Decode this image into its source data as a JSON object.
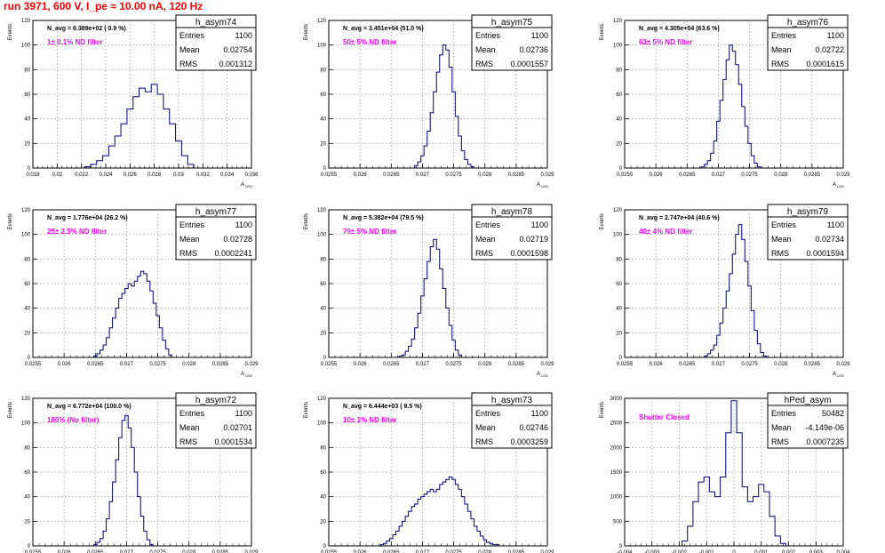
{
  "page_title": "run 3971,   600 V, I_pe ≈ 10.00 nA, 120 Hz",
  "colors": {
    "title": "#ff0000",
    "histogram": "#000080",
    "annotation": "#ff00ff",
    "grid": "#b4b4b4"
  },
  "chart_data": [
    {
      "type": "histogram",
      "name": "h_asym74",
      "ylabel": "Events",
      "xlabel": "A_LED",
      "stats": {
        "entries": "1100",
        "mean": "0.02754",
        "rms": "0.001312"
      },
      "navg_label": "N_avg = 6.389e+02 ( 0.9 %)",
      "filter_label": "1± 0.1% ND filter",
      "xlim": [
        0.018,
        0.036
      ],
      "ylim": [
        0,
        120
      ],
      "grid": true,
      "x_ticks": [
        "0.018",
        "0.02",
        "0.022",
        "0.024",
        "0.026",
        "0.028",
        "0.03",
        "0.032",
        "0.034",
        "0.036"
      ],
      "y_ticks": [
        "0",
        "20",
        "40",
        "60",
        "80",
        "100",
        "120"
      ],
      "x": [
        0.0225,
        0.023,
        0.0235,
        0.024,
        0.0245,
        0.025,
        0.0255,
        0.026,
        0.0265,
        0.027,
        0.0275,
        0.028,
        0.0285,
        0.029,
        0.0295,
        0.03,
        0.0305,
        0.031
      ],
      "values": [
        1,
        3,
        6,
        10,
        18,
        26,
        36,
        48,
        58,
        65,
        62,
        68,
        60,
        48,
        36,
        22,
        10,
        3
      ]
    },
    {
      "type": "histogram",
      "name": "h_asym75",
      "ylabel": "Events",
      "xlabel": "A_LED",
      "stats": {
        "entries": "1100",
        "mean": "0.02736",
        "rms": "0.0001557"
      },
      "navg_label": "N_avg = 3.451e+04 (51.0 %)",
      "filter_label": "50± 5% ND filter",
      "xlim": [
        0.0255,
        0.029
      ],
      "ylim": [
        0,
        120
      ],
      "grid": true,
      "x_ticks": [
        "0.0255",
        "0.026",
        "0.0265",
        "0.027",
        "0.0275",
        "0.028",
        "0.0285",
        "0.029"
      ],
      "y_ticks": [
        "0",
        "20",
        "40",
        "60",
        "80",
        "100",
        "120"
      ],
      "x": [
        0.0269,
        0.02695,
        0.027,
        0.02705,
        0.0271,
        0.02715,
        0.0272,
        0.02725,
        0.0273,
        0.02735,
        0.0274,
        0.02745,
        0.0275,
        0.02755,
        0.0276,
        0.02765,
        0.0277,
        0.02775,
        0.0278
      ],
      "values": [
        2,
        5,
        10,
        18,
        30,
        45,
        62,
        78,
        92,
        100,
        96,
        82,
        62,
        42,
        26,
        14,
        7,
        3,
        1
      ]
    },
    {
      "type": "histogram",
      "name": "h_asym76",
      "ylabel": "Events",
      "xlabel": "A_LED",
      "stats": {
        "entries": "1100",
        "mean": "0.02722",
        "rms": "0.0001615"
      },
      "navg_label": "N_avg = 4.305e+04 (63.6 %)",
      "filter_label": "63± 5% ND filter",
      "xlim": [
        0.0255,
        0.029
      ],
      "ylim": [
        0,
        120
      ],
      "grid": true,
      "x_ticks": [
        "0.0255",
        "0.026",
        "0.0265",
        "0.027",
        "0.0275",
        "0.028",
        "0.0285",
        "0.029"
      ],
      "y_ticks": [
        "0",
        "20",
        "40",
        "60",
        "80",
        "100",
        "120"
      ],
      "x": [
        0.02675,
        0.0268,
        0.02685,
        0.0269,
        0.02695,
        0.027,
        0.02705,
        0.0271,
        0.02715,
        0.0272,
        0.02725,
        0.0273,
        0.02735,
        0.0274,
        0.02745,
        0.0275,
        0.02755,
        0.0276,
        0.02765
      ],
      "values": [
        1,
        3,
        6,
        12,
        22,
        38,
        55,
        72,
        88,
        100,
        95,
        84,
        68,
        50,
        34,
        20,
        10,
        4,
        1
      ]
    },
    {
      "type": "histogram",
      "name": "h_asym77",
      "ylabel": "Events",
      "xlabel": "A_LED",
      "stats": {
        "entries": "1100",
        "mean": "0.02728",
        "rms": "0.0002241"
      },
      "navg_label": "N_avg = 1.776e+04 (26.2 %)",
      "filter_label": "25± 2.5% ND filter",
      "xlim": [
        0.0255,
        0.029
      ],
      "ylim": [
        0,
        120
      ],
      "grid": true,
      "x_ticks": [
        "0.0255",
        "0.026",
        "0.0265",
        "0.027",
        "0.0275",
        "0.028",
        "0.0285",
        "0.029"
      ],
      "y_ticks": [
        "0",
        "20",
        "40",
        "60",
        "80",
        "100",
        "120"
      ],
      "x": [
        0.0265,
        0.02655,
        0.0266,
        0.02665,
        0.0267,
        0.02675,
        0.0268,
        0.02685,
        0.0269,
        0.02695,
        0.027,
        0.02705,
        0.0271,
        0.02715,
        0.0272,
        0.02725,
        0.0273,
        0.02735,
        0.0274,
        0.02745,
        0.0275,
        0.02755,
        0.0276,
        0.02765,
        0.0277
      ],
      "values": [
        1,
        3,
        6,
        10,
        16,
        24,
        32,
        40,
        48,
        52,
        56,
        60,
        58,
        62,
        66,
        70,
        68,
        62,
        54,
        44,
        34,
        24,
        14,
        7,
        2
      ]
    },
    {
      "type": "histogram",
      "name": "h_asym78",
      "ylabel": "Events",
      "xlabel": "A_LED",
      "stats": {
        "entries": "1100",
        "mean": "0.02719",
        "rms": "0.0001598"
      },
      "navg_label": "N_avg = 5.382e+04 (79.5 %)",
      "filter_label": "79± 5% ND filter",
      "xlim": [
        0.0255,
        0.029
      ],
      "ylim": [
        0,
        120
      ],
      "grid": true,
      "x_ticks": [
        "0.0255",
        "0.026",
        "0.0265",
        "0.027",
        "0.0275",
        "0.028",
        "0.0285",
        "0.029"
      ],
      "y_ticks": [
        "0",
        "20",
        "40",
        "60",
        "80",
        "100",
        "120"
      ],
      "x": [
        0.02665,
        0.0267,
        0.02675,
        0.0268,
        0.02685,
        0.0269,
        0.02695,
        0.027,
        0.02705,
        0.0271,
        0.02715,
        0.0272,
        0.02725,
        0.0273,
        0.02735,
        0.0274,
        0.02745,
        0.0275,
        0.02755,
        0.0276
      ],
      "values": [
        1,
        2,
        5,
        9,
        15,
        24,
        36,
        50,
        64,
        78,
        90,
        96,
        88,
        72,
        56,
        40,
        26,
        14,
        6,
        2
      ]
    },
    {
      "type": "histogram",
      "name": "h_asym79",
      "ylabel": "Events",
      "xlabel": "A_LED",
      "stats": {
        "entries": "1100",
        "mean": "0.02734",
        "rms": "0.0001594"
      },
      "navg_label": "N_avg = 2.747e+04 (40.6 %)",
      "filter_label": "40± 4% ND filter",
      "xlim": [
        0.0255,
        0.029
      ],
      "ylim": [
        0,
        120
      ],
      "grid": true,
      "x_ticks": [
        "0.0255",
        "0.026",
        "0.0265",
        "0.027",
        "0.0275",
        "0.028",
        "0.0285",
        "0.029"
      ],
      "y_ticks": [
        "0",
        "20",
        "40",
        "60",
        "80",
        "100",
        "120"
      ],
      "x": [
        0.0268,
        0.02685,
        0.0269,
        0.02695,
        0.027,
        0.02705,
        0.0271,
        0.02715,
        0.0272,
        0.02725,
        0.0273,
        0.02735,
        0.0274,
        0.02745,
        0.0275,
        0.02755,
        0.0276,
        0.02765,
        0.0277,
        0.02775
      ],
      "values": [
        1,
        3,
        6,
        10,
        18,
        28,
        40,
        54,
        68,
        84,
        100,
        108,
        96,
        78,
        58,
        38,
        22,
        11,
        4,
        1
      ]
    },
    {
      "type": "histogram",
      "name": "h_asym72",
      "ylabel": "Events",
      "xlabel": "A_LED",
      "stats": {
        "entries": "1100",
        "mean": "0.02701",
        "rms": "0.0001534"
      },
      "navg_label": "N_avg = 6.772e+04 (100.0 %)",
      "filter_label": "100% (No filter)",
      "xlim": [
        0.0255,
        0.029
      ],
      "ylim": [
        0,
        120
      ],
      "grid": true,
      "x_ticks": [
        "0.0255",
        "0.026",
        "0.0265",
        "0.027",
        "0.0275",
        "0.028",
        "0.0285",
        "0.029"
      ],
      "y_ticks": [
        "0",
        "20",
        "40",
        "60",
        "80",
        "100",
        "120"
      ],
      "x": [
        0.0265,
        0.02655,
        0.0266,
        0.02665,
        0.0267,
        0.02675,
        0.0268,
        0.02685,
        0.0269,
        0.02695,
        0.027,
        0.02705,
        0.0271,
        0.02715,
        0.0272,
        0.02725,
        0.0273,
        0.02735,
        0.0274
      ],
      "values": [
        1,
        3,
        6,
        12,
        22,
        36,
        52,
        70,
        88,
        102,
        106,
        96,
        80,
        60,
        40,
        24,
        12,
        5,
        1
      ]
    },
    {
      "type": "histogram",
      "name": "h_asym73",
      "ylabel": "Events",
      "xlabel": "A_LED",
      "stats": {
        "entries": "1100",
        "mean": "0.02746",
        "rms": "0.0003259"
      },
      "navg_label": "N_avg = 6.444e+03 ( 9.5 %)",
      "filter_label": "10± 1% ND filter",
      "xlim": [
        0.0255,
        0.029
      ],
      "ylim": [
        0,
        120
      ],
      "grid": true,
      "x_ticks": [
        "0.0255",
        "0.026",
        "0.0265",
        "0.027",
        "0.0275",
        "0.028",
        "0.0285",
        "0.029"
      ],
      "y_ticks": [
        "0",
        "20",
        "40",
        "60",
        "80",
        "100",
        "120"
      ],
      "x": [
        0.02635,
        0.0264,
        0.02645,
        0.0265,
        0.02655,
        0.0266,
        0.02665,
        0.0267,
        0.02675,
        0.0268,
        0.02685,
        0.0269,
        0.02695,
        0.027,
        0.02705,
        0.0271,
        0.02715,
        0.0272,
        0.02725,
        0.0273,
        0.02735,
        0.0274,
        0.02745,
        0.0275,
        0.02755,
        0.0276,
        0.02765,
        0.0277,
        0.02775,
        0.0278,
        0.02785,
        0.0279,
        0.02795,
        0.028,
        0.02805,
        0.0281,
        0.02815,
        0.0282
      ],
      "values": [
        1,
        2,
        4,
        6,
        9,
        12,
        16,
        20,
        24,
        28,
        32,
        34,
        38,
        40,
        42,
        44,
        46,
        44,
        46,
        50,
        52,
        54,
        56,
        54,
        50,
        46,
        40,
        34,
        28,
        22,
        16,
        12,
        8,
        5,
        3,
        2,
        1,
        1
      ]
    },
    {
      "type": "histogram",
      "name": "hPed_asym",
      "ylabel": "Events",
      "xlabel": "",
      "stats": {
        "entries": "50482",
        "mean": "-4.149e-06",
        "rms": "0.0007235"
      },
      "navg_label": "",
      "filter_label": "Shutter Closed",
      "xlim": [
        -0.004,
        0.004
      ],
      "ylim": [
        0,
        3000
      ],
      "grid": true,
      "x_ticks": [
        "-0.004",
        "-0.003",
        "-0.002",
        "-0.001",
        "0",
        "0.001",
        "0.002",
        "0.003",
        "0.004"
      ],
      "y_ticks": [
        "0",
        "500",
        "1000",
        "1500",
        "2000",
        "2500",
        "3000"
      ],
      "x": [
        -0.0018,
        -0.0016,
        -0.0014,
        -0.0012,
        -0.001,
        -0.0008,
        -0.0006,
        -0.0004,
        -0.0002,
        0.0,
        0.0002,
        0.0004,
        0.0006,
        0.0008,
        0.001,
        0.0012,
        0.0014,
        0.0016,
        0.0018
      ],
      "values": [
        100,
        400,
        900,
        1300,
        1400,
        1100,
        1000,
        1400,
        2300,
        2950,
        2300,
        1200,
        900,
        1000,
        1250,
        1100,
        600,
        200,
        50
      ]
    }
  ]
}
